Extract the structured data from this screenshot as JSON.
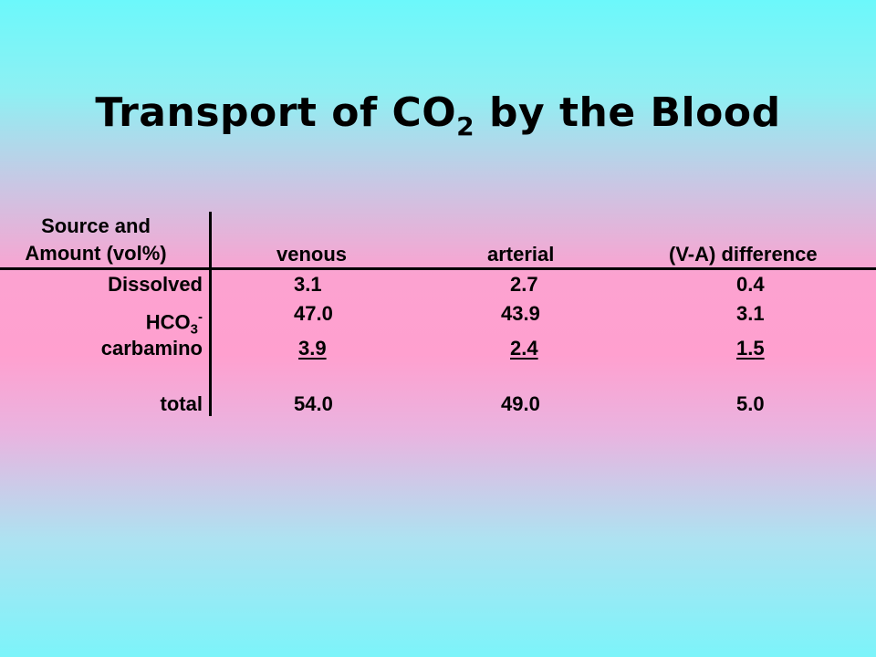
{
  "title": {
    "main": "Transport of CO",
    "sub": "2",
    "rest": " by the Blood"
  },
  "table": {
    "header": {
      "source_line1": "Source and",
      "source_line2": "Amount (vol%)",
      "col_venous": "venous",
      "col_arterial": "arterial",
      "col_diff": "(V-A) difference"
    },
    "rows": [
      {
        "label": "Dissolved",
        "venous": "3.1",
        "arterial": "2.7",
        "diff": "0.4"
      },
      {
        "label_main": "HCO",
        "label_sub": "3",
        "label_sup": "-",
        "venous": "47.0",
        "arterial": "43.9",
        "diff": "3.1"
      },
      {
        "label": "carbamino",
        "venous": "3.9",
        "arterial": "2.4",
        "diff": "1.5"
      },
      {
        "label": "total",
        "venous": "54.0",
        "arterial": "49.0",
        "diff": "5.0"
      }
    ]
  }
}
